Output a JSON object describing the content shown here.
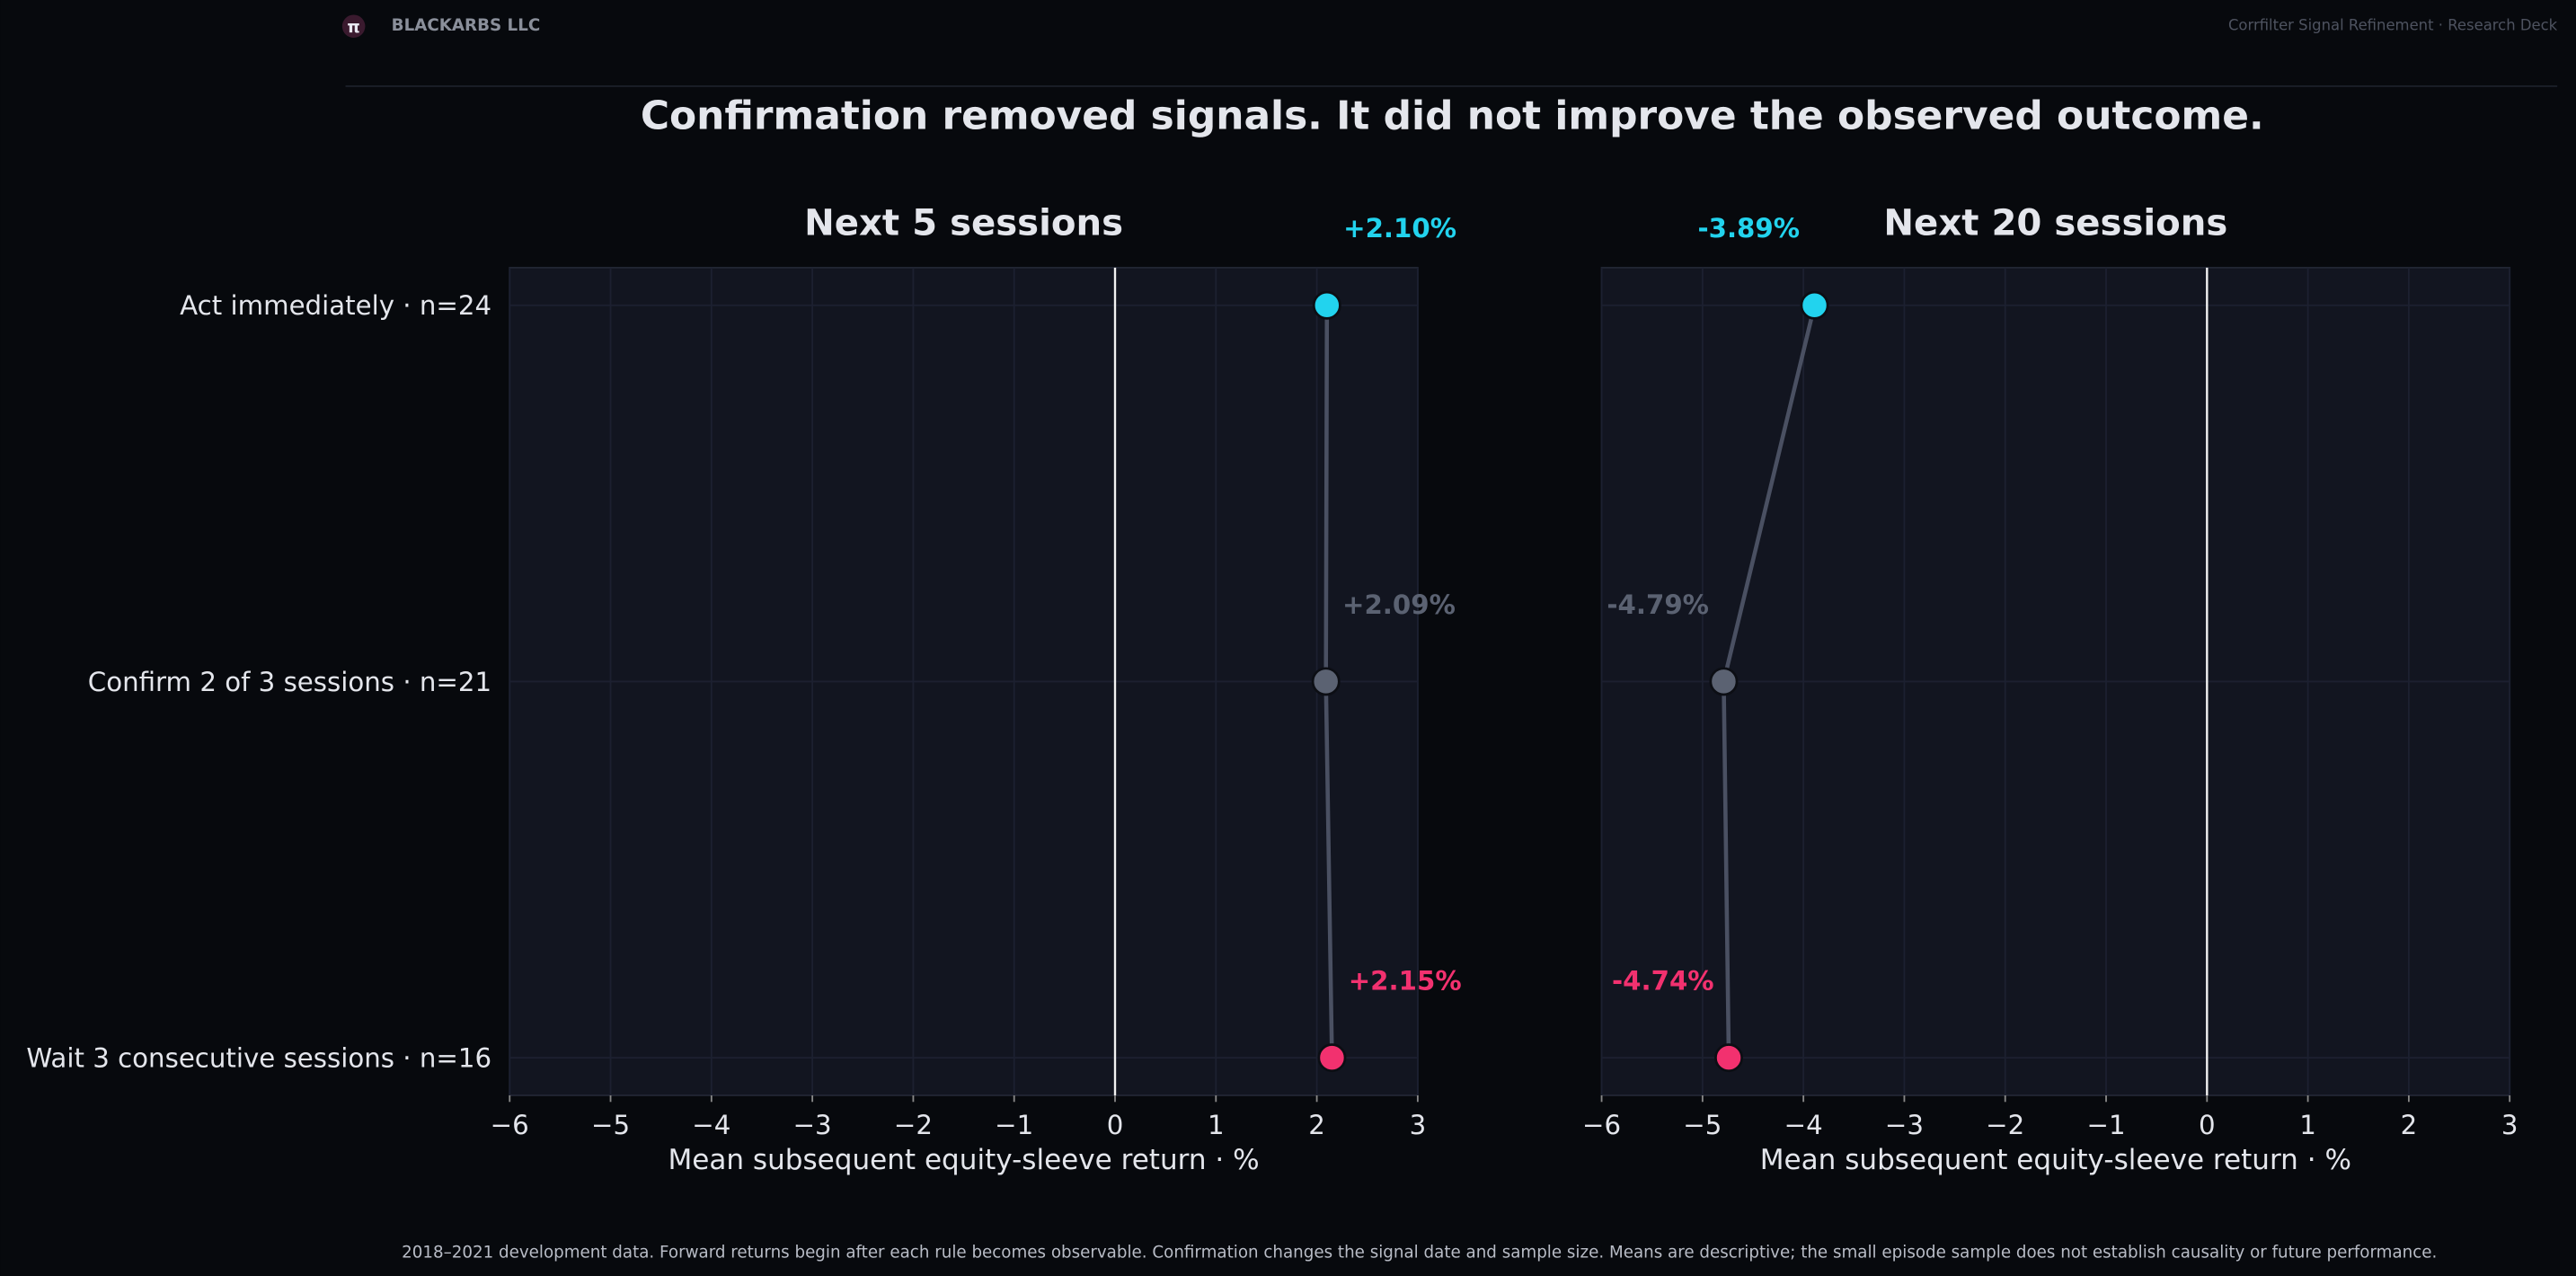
{
  "logo": "π",
  "brand": "BLACKARBS LLC",
  "deck_title": "Corrfilter Signal Refinement · Research Deck",
  "title": "Confirmation removed signals. It did not improve the observed outcome.",
  "footnote": "2018–2021 development data. Forward returns begin after each rule becomes observable. Confirmation changes the signal date and sample size. Means are descriptive; the small episode sample does not establish causality or future performance.",
  "chart_data": [
    {
      "type": "dot",
      "title": "Next 5 sessions",
      "categories": [
        "Act immediately  ·  n=24",
        "Confirm 2 of 3 sessions  ·  n=21",
        "Wait 3 consecutive sessions  ·  n=16"
      ],
      "values": [
        2.1,
        2.09,
        2.15
      ],
      "value_labels": [
        "+2.10%",
        "+2.09%",
        "+2.15%"
      ],
      "colors": [
        "#22d3ee",
        "#5b6272",
        "#f2316f"
      ],
      "xlabel": "Mean subsequent equity-sleeve return · %",
      "xlim": [
        -6,
        3
      ],
      "xticks": [
        {
          "value": -6,
          "label": "−6"
        },
        {
          "value": -5,
          "label": "−5"
        },
        {
          "value": -4,
          "label": "−4"
        },
        {
          "value": -3,
          "label": "−3"
        },
        {
          "value": -2,
          "label": "−2"
        },
        {
          "value": -1,
          "label": "−1"
        },
        0,
        1,
        2,
        3
      ],
      "grid": true
    },
    {
      "type": "dot",
      "title": "Next 20 sessions",
      "values": [
        -3.89,
        -4.79,
        -4.74
      ],
      "value_labels": [
        "-3.89%",
        "-4.79%",
        "-4.74%"
      ],
      "colors": [
        "#22d3ee",
        "#5b6272",
        "#f2316f"
      ],
      "xlabel": "Mean subsequent equity-sleeve return · %",
      "xlim": [
        -6,
        3
      ],
      "xticks": [
        {
          "value": -6,
          "label": "−6"
        },
        {
          "value": -5,
          "label": "−5"
        },
        {
          "value": -4,
          "label": "−4"
        },
        {
          "value": -3,
          "label": "−3"
        },
        {
          "value": -2,
          "label": "−2"
        },
        {
          "value": -1,
          "label": "−1"
        },
        0,
        1,
        2,
        3
      ],
      "grid": true
    }
  ]
}
